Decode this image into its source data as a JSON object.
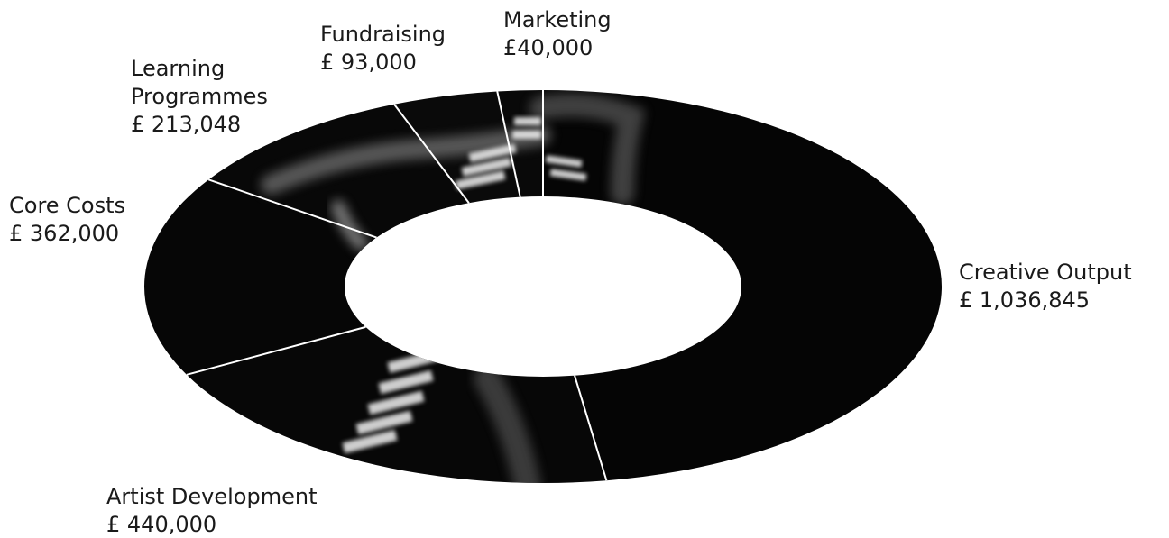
{
  "chart_data": {
    "type": "pie",
    "title": "",
    "start_angle_deg": 270,
    "slices": [
      {
        "id": "creative-output",
        "lines": [
          "Creative Output",
          "£ 1,036,845"
        ],
        "value": 1036845
      },
      {
        "id": "artist-development",
        "lines": [
          "Artist Development",
          "£ 440,000"
        ],
        "value": 440000
      },
      {
        "id": "core-costs",
        "lines": [
          "Core Costs",
          "£ 362,000"
        ],
        "value": 362000
      },
      {
        "id": "learning-programmes",
        "lines": [
          "Learning",
          "Programmes",
          "£ 213,048"
        ],
        "value": 213048
      },
      {
        "id": "fundraising",
        "lines": [
          "Fundraising",
          "£ 93,000"
        ],
        "value": 93000
      },
      {
        "id": "marketing",
        "lines": [
          "Marketing",
          "£40,000"
        ],
        "value": 40000
      }
    ]
  }
}
